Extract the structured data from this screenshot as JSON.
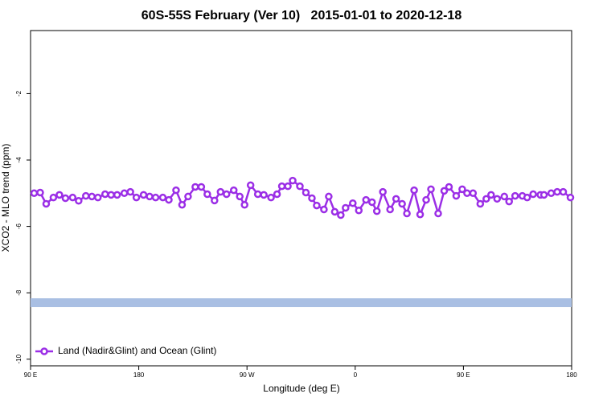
{
  "chart_data": {
    "type": "line",
    "title": "60S-55S February (Ver 10)   2015-01-01 to 2020-12-18",
    "x_label": "Longitude (deg E)",
    "y_label": "XCO2 - MLO trend (ppm)",
    "xlim": [
      90,
      540
    ],
    "ylim": [
      -10.2,
      -0.1
    ],
    "xticks": [
      {
        "value": 90,
        "label": "90 E"
      },
      180,
      {
        "value": 270,
        "label": "90 W"
      },
      {
        "value": 360,
        "label": "0"
      },
      {
        "value": 450,
        "label": "90 E"
      },
      {
        "value": 540,
        "label": "180"
      }
    ],
    "yticks": [
      -10,
      -8,
      -6,
      -4,
      -2
    ],
    "legend": "bottom-left",
    "x": [
      93,
      98,
      103,
      109,
      114,
      119,
      125,
      130,
      136,
      141,
      146,
      152,
      157,
      162,
      168,
      173,
      178,
      184,
      189,
      194,
      200,
      205,
      211,
      216,
      221,
      227,
      232,
      237,
      243,
      248,
      253,
      259,
      264,
      268,
      273,
      279,
      284,
      290,
      295,
      299,
      304,
      308,
      314,
      319,
      324,
      328,
      334,
      338,
      343,
      348,
      352,
      358,
      363,
      369,
      374,
      378,
      383,
      389,
      394,
      399,
      403,
      409,
      414,
      419,
      423,
      429,
      434,
      438,
      444,
      449,
      453,
      458,
      464,
      469,
      473,
      478,
      484,
      488,
      493,
      499,
      503,
      508,
      514,
      517,
      523,
      528,
      533,
      539
    ],
    "series": [
      {
        "name": "Land (Nadir&Glint) and Ocean (Glint)",
        "color": "#9b2ee6",
        "values": [
          -5.0,
          -4.98,
          -5.32,
          -5.13,
          -5.05,
          -5.15,
          -5.13,
          -5.23,
          -5.08,
          -5.1,
          -5.13,
          -5.03,
          -5.05,
          -5.05,
          -5.0,
          -4.96,
          -5.13,
          -5.05,
          -5.1,
          -5.13,
          -5.13,
          -5.2,
          -4.91,
          -5.35,
          -5.1,
          -4.81,
          -4.81,
          -5.03,
          -5.22,
          -4.96,
          -5.03,
          -4.91,
          -5.1,
          -5.35,
          -4.76,
          -5.03,
          -5.05,
          -5.13,
          -5.03,
          -4.79,
          -4.79,
          -4.62,
          -4.79,
          -4.98,
          -5.15,
          -5.37,
          -5.49,
          -5.1,
          -5.56,
          -5.66,
          -5.44,
          -5.3,
          -5.52,
          -5.2,
          -5.27,
          -5.54,
          -4.96,
          -5.49,
          -5.17,
          -5.32,
          -5.61,
          -4.91,
          -5.64,
          -5.2,
          -4.88,
          -5.61,
          -4.93,
          -4.81,
          -5.08,
          -4.88,
          -5.0,
          -5.0,
          -5.32,
          -5.17,
          -5.05,
          -5.17,
          -5.1,
          -5.25,
          -5.08,
          -5.08,
          -5.13,
          -5.03,
          -5.05,
          -5.05,
          -5.0,
          -4.96,
          -4.96,
          -5.13
        ]
      }
    ]
  }
}
